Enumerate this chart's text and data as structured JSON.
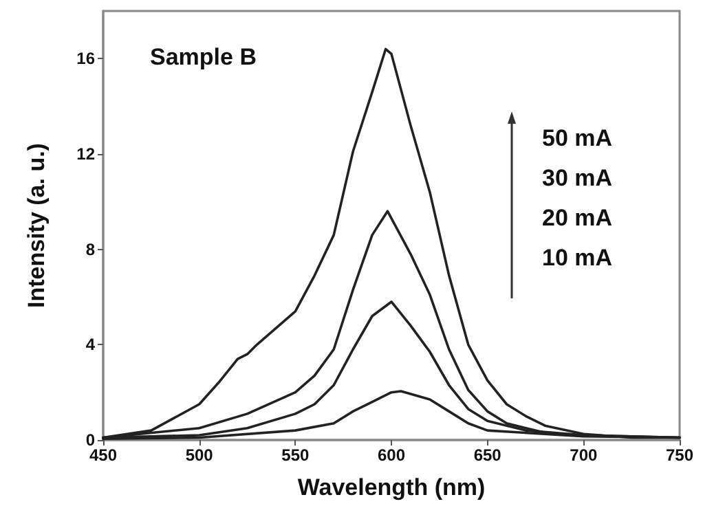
{
  "chart_data": {
    "type": "line",
    "xlabel": "Wavelength (nm)",
    "ylabel": "Intensity (a. u.)",
    "annotations": [
      "Sample B",
      "50 mA",
      "30 mA",
      "20 mA",
      "10 mA"
    ],
    "xlim": [
      450,
      750
    ],
    "xticks": [
      450,
      500,
      550,
      600,
      650,
      700,
      750
    ],
    "ylim": [
      0,
      18
    ],
    "yticks": [
      0,
      4,
      8,
      12,
      16
    ],
    "marker": "none",
    "line_style": "solid",
    "series": [
      {
        "color": "#222222",
        "x": [
          450,
          475,
          500,
          510,
          520,
          525,
          530,
          540,
          550,
          560,
          570,
          580,
          590,
          597,
          600,
          610,
          620,
          630,
          640,
          650,
          660,
          670,
          680,
          700,
          725,
          750
        ],
        "values": [
          0.1,
          0.4,
          1.5,
          2.4,
          3.4,
          3.6,
          4.0,
          4.7,
          5.4,
          6.9,
          8.6,
          12.1,
          14.6,
          16.4,
          16.2,
          13.2,
          10.4,
          6.9,
          4.0,
          2.5,
          1.5,
          1.0,
          0.6,
          0.25,
          0.1,
          0.1
        ]
      },
      {
        "color": "#222222",
        "x": [
          450,
          500,
          525,
          550,
          560,
          570,
          580,
          590,
          598,
          610,
          620,
          630,
          640,
          650,
          660,
          680,
          700,
          750
        ],
        "values": [
          0.1,
          0.5,
          1.1,
          2.0,
          2.7,
          3.8,
          6.3,
          8.6,
          9.6,
          7.8,
          6.1,
          3.8,
          2.1,
          1.2,
          0.7,
          0.3,
          0.2,
          0.1
        ]
      },
      {
        "color": "#222222",
        "x": [
          450,
          500,
          525,
          550,
          560,
          570,
          580,
          590,
          600,
          610,
          620,
          630,
          640,
          650,
          670,
          700,
          750
        ],
        "values": [
          0.1,
          0.2,
          0.5,
          1.1,
          1.5,
          2.3,
          3.8,
          5.2,
          5.8,
          4.8,
          3.7,
          2.3,
          1.3,
          0.8,
          0.4,
          0.2,
          0.1
        ]
      },
      {
        "color": "#222222",
        "x": [
          450,
          500,
          550,
          570,
          580,
          590,
          600,
          605,
          620,
          630,
          640,
          650,
          700,
          750
        ],
        "values": [
          0.05,
          0.1,
          0.4,
          0.7,
          1.2,
          1.6,
          2.0,
          2.05,
          1.7,
          1.2,
          0.7,
          0.4,
          0.15,
          0.1
        ]
      }
    ]
  }
}
